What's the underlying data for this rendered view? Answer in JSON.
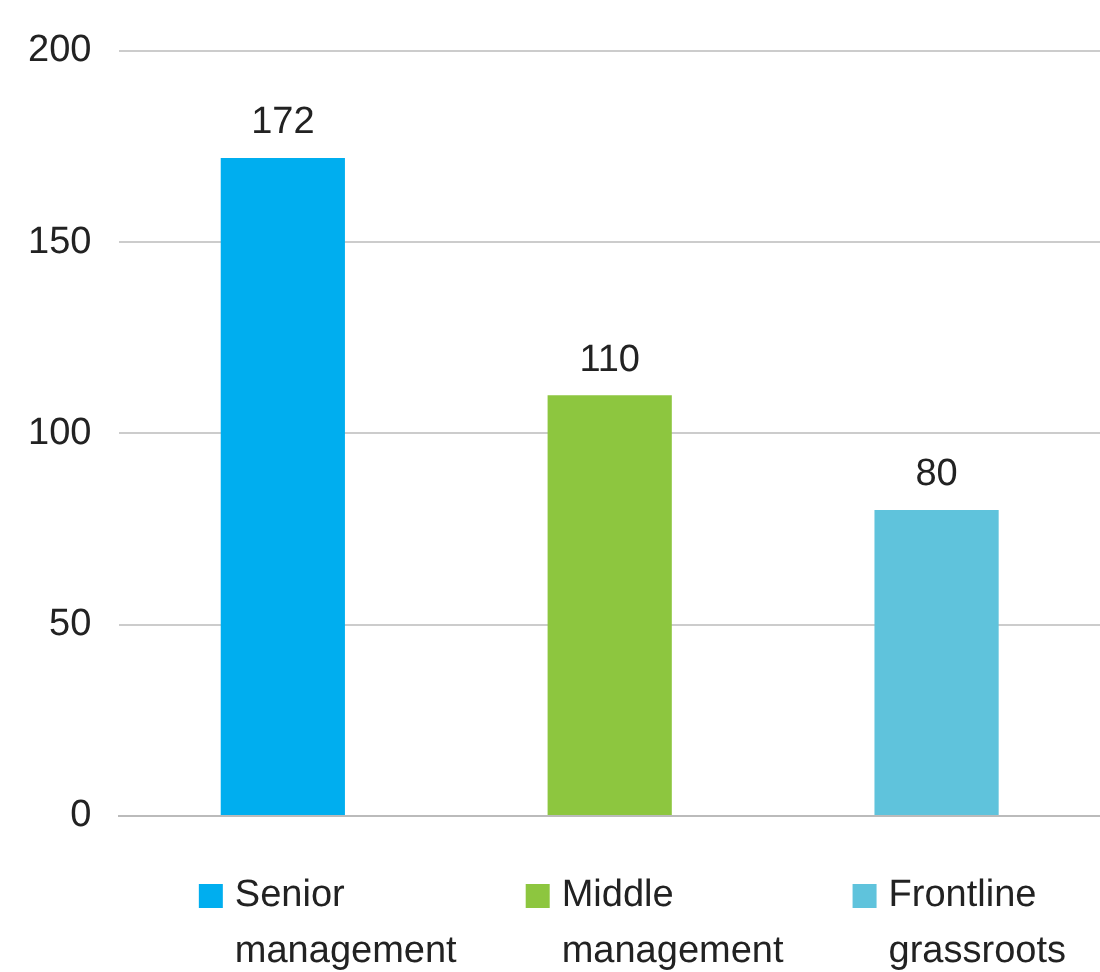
{
  "chart_data": {
    "type": "bar",
    "categories": [
      null,
      null,
      null
    ],
    "series": [
      {
        "name": "Senior management",
        "color": "#00aeef",
        "values": [
          172,
          null,
          null
        ]
      },
      {
        "name": "Middle management",
        "color": "#8dc63f",
        "values": [
          null,
          110,
          null
        ]
      },
      {
        "name": "Frontline grassroots",
        "color": "#5fc3dc",
        "values": [
          null,
          null,
          80
        ]
      }
    ],
    "ylim": [
      0,
      200
    ],
    "yticks": [
      0,
      50,
      100,
      150,
      200
    ],
    "grid": "y",
    "legend": "bottom",
    "tick_labels": "y",
    "data_labels": true
  }
}
